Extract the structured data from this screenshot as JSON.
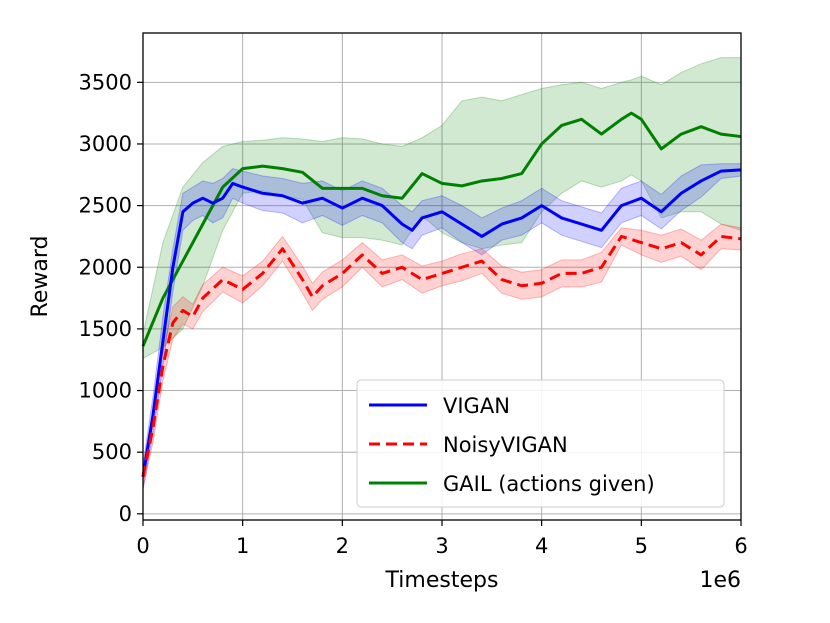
{
  "chart_data": {
    "type": "line",
    "xlabel": "Timesteps",
    "ylabel": "Reward",
    "x_offset_label": "1e6",
    "x_scale": 1000000,
    "xlim": [
      0,
      6
    ],
    "ylim": [
      -50,
      3900
    ],
    "xticks": [
      0,
      1,
      2,
      3,
      4,
      5,
      6
    ],
    "yticks": [
      0,
      500,
      1000,
      1500,
      2000,
      2500,
      3000,
      3500
    ],
    "grid": true,
    "legend_position": "lower right",
    "series": [
      {
        "name": "GAIL (actions given)",
        "color": "#008000",
        "style": "solid",
        "x": [
          0,
          0.2,
          0.4,
          0.6,
          0.8,
          1.0,
          1.2,
          1.4,
          1.6,
          1.8,
          2.0,
          2.2,
          2.4,
          2.6,
          2.8,
          3.0,
          3.2,
          3.4,
          3.6,
          3.8,
          4.0,
          4.2,
          4.4,
          4.6,
          4.8,
          4.9,
          5.0,
          5.2,
          5.4,
          5.6,
          5.8,
          6.0
        ],
        "y": [
          1360,
          1750,
          2050,
          2350,
          2650,
          2800,
          2820,
          2800,
          2770,
          2640,
          2640,
          2640,
          2580,
          2560,
          2760,
          2680,
          2660,
          2700,
          2720,
          2760,
          3000,
          3150,
          3200,
          3080,
          3200,
          3250,
          3200,
          2960,
          3080,
          3140,
          3080,
          3060
        ],
        "upper": [
          1460,
          2200,
          2650,
          2850,
          2980,
          3020,
          3030,
          3050,
          3040,
          3020,
          3050,
          3040,
          3000,
          2980,
          3050,
          3150,
          3350,
          3380,
          3350,
          3400,
          3450,
          3480,
          3500,
          3450,
          3500,
          3520,
          3550,
          3480,
          3580,
          3650,
          3700,
          3700
        ],
        "lower": [
          1260,
          1350,
          1500,
          1850,
          2300,
          2600,
          2620,
          2580,
          2550,
          2280,
          2240,
          2240,
          2220,
          2180,
          2420,
          2280,
          2200,
          2150,
          2180,
          2200,
          2450,
          2600,
          2700,
          2650,
          2700,
          2750,
          2700,
          2400,
          2450,
          2450,
          2350,
          2300
        ]
      },
      {
        "name": "VIGAN",
        "color": "#0000ff",
        "style": "solid",
        "x": [
          0,
          0.1,
          0.2,
          0.3,
          0.4,
          0.5,
          0.6,
          0.7,
          0.8,
          0.9,
          1.0,
          1.2,
          1.4,
          1.6,
          1.8,
          2.0,
          2.2,
          2.4,
          2.6,
          2.7,
          2.8,
          3.0,
          3.2,
          3.4,
          3.6,
          3.8,
          4.0,
          4.2,
          4.4,
          4.6,
          4.8,
          5.0,
          5.2,
          5.4,
          5.6,
          5.8,
          6.0
        ],
        "y": [
          300,
          800,
          1400,
          2000,
          2450,
          2520,
          2560,
          2520,
          2560,
          2680,
          2650,
          2600,
          2580,
          2520,
          2560,
          2480,
          2560,
          2500,
          2350,
          2300,
          2400,
          2450,
          2350,
          2250,
          2350,
          2400,
          2500,
          2400,
          2350,
          2300,
          2500,
          2560,
          2450,
          2600,
          2700,
          2780,
          2790
        ],
        "upper": [
          400,
          950,
          1600,
          2150,
          2600,
          2650,
          2700,
          2680,
          2720,
          2800,
          2780,
          2740,
          2720,
          2680,
          2700,
          2620,
          2700,
          2640,
          2500,
          2450,
          2540,
          2580,
          2500,
          2400,
          2480,
          2540,
          2640,
          2540,
          2490,
          2440,
          2640,
          2700,
          2590,
          2740,
          2830,
          2840,
          2840
        ],
        "lower": [
          200,
          650,
          1200,
          1800,
          2300,
          2380,
          2420,
          2360,
          2400,
          2560,
          2520,
          2460,
          2440,
          2360,
          2420,
          2340,
          2420,
          2360,
          2200,
          2150,
          2260,
          2320,
          2200,
          2100,
          2220,
          2260,
          2360,
          2260,
          2210,
          2160,
          2360,
          2420,
          2310,
          2460,
          2570,
          2720,
          2740
        ]
      },
      {
        "name": "NoisyVIGAN",
        "color": "#ff0000",
        "style": "dashed",
        "x": [
          0,
          0.1,
          0.2,
          0.3,
          0.4,
          0.5,
          0.6,
          0.8,
          1.0,
          1.2,
          1.4,
          1.6,
          1.7,
          1.8,
          2.0,
          2.2,
          2.4,
          2.6,
          2.8,
          3.0,
          3.2,
          3.4,
          3.6,
          3.8,
          4.0,
          4.2,
          4.4,
          4.6,
          4.8,
          5.0,
          5.2,
          5.4,
          5.6,
          5.8,
          6.0
        ],
        "y": [
          300,
          700,
          1200,
          1550,
          1650,
          1600,
          1750,
          1900,
          1820,
          1950,
          2150,
          1900,
          1760,
          1850,
          1950,
          2100,
          1950,
          2000,
          1900,
          1950,
          2000,
          2050,
          1900,
          1850,
          1870,
          1950,
          1950,
          2000,
          2250,
          2200,
          2150,
          2200,
          2100,
          2250,
          2230
        ],
        "upper": [
          400,
          820,
          1320,
          1680,
          1760,
          1700,
          1860,
          2000,
          1930,
          2050,
          2250,
          2010,
          1870,
          1960,
          2060,
          2200,
          2060,
          2100,
          2010,
          2050,
          2110,
          2150,
          2010,
          1960,
          1980,
          2060,
          2060,
          2120,
          2320,
          2300,
          2260,
          2310,
          2220,
          2350,
          2320
        ],
        "lower": [
          200,
          580,
          1080,
          1420,
          1540,
          1500,
          1640,
          1800,
          1710,
          1850,
          2050,
          1790,
          1650,
          1740,
          1840,
          2000,
          1840,
          1900,
          1790,
          1850,
          1890,
          1950,
          1790,
          1740,
          1760,
          1840,
          1840,
          1880,
          2180,
          2100,
          2040,
          2090,
          1980,
          2150,
          2140
        ]
      }
    ],
    "legend_order": [
      "VIGAN",
      "NoisyVIGAN",
      "GAIL (actions given)"
    ]
  }
}
